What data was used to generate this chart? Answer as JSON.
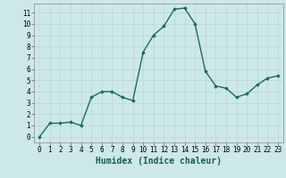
{
  "x": [
    0,
    1,
    2,
    3,
    4,
    5,
    6,
    7,
    8,
    9,
    10,
    11,
    12,
    13,
    14,
    15,
    16,
    17,
    18,
    19,
    20,
    21,
    22,
    23
  ],
  "y": [
    0.0,
    1.2,
    1.2,
    1.3,
    1.0,
    3.5,
    4.0,
    4.0,
    3.5,
    3.2,
    7.5,
    9.0,
    9.8,
    11.3,
    11.4,
    10.0,
    5.8,
    4.5,
    4.3,
    3.5,
    3.8,
    4.6,
    5.2,
    5.4
  ],
  "line_color": "#1a6b5a",
  "marker": "D",
  "marker_size": 1.8,
  "bg_color": "#cde8e8",
  "grid_color": "#b8d8d4",
  "xlabel": "Humidex (Indice chaleur)",
  "xlim": [
    -0.5,
    23.5
  ],
  "ylim": [
    -0.5,
    11.8
  ],
  "xticks": [
    0,
    1,
    2,
    3,
    4,
    5,
    6,
    7,
    8,
    9,
    10,
    11,
    12,
    13,
    14,
    15,
    16,
    17,
    18,
    19,
    20,
    21,
    22,
    23
  ],
  "yticks": [
    0,
    1,
    2,
    3,
    4,
    5,
    6,
    7,
    8,
    9,
    10,
    11
  ],
  "tick_labelsize": 5.5,
  "xlabel_fontsize": 7,
  "line_width": 1.0
}
